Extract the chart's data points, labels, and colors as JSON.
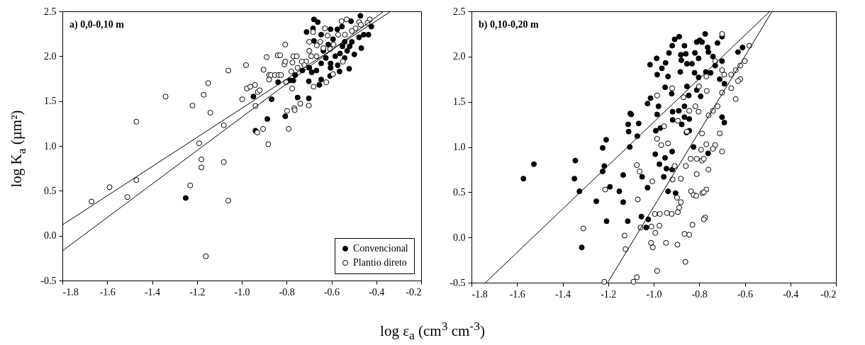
{
  "chart_data": [
    {
      "type": "scatter",
      "title": "a) 0,0-0,10 m",
      "xlabel": "log ε$_{a}$ (cm$^{3}$ cm$^{-3}$)",
      "ylabel": "log K$_{a}$ (µm²)",
      "xlim": [
        -1.8,
        -0.2
      ],
      "ylim": [
        -0.5,
        2.5
      ],
      "xticks": [
        -1.8,
        -1.6,
        -1.4,
        -1.2,
        {
          "value": -1.0,
          "label": "-1.0"
        },
        -0.8,
        -0.6,
        -0.4,
        -0.2
      ],
      "yticks": [
        -0.5,
        {
          "value": 0,
          "label": "0.0"
        },
        0.5,
        {
          "value": 1,
          "label": "1.0"
        },
        1.5,
        {
          "value": 2,
          "label": "2.0"
        },
        2.5
      ],
      "legend": "bottom right",
      "marker": "circle",
      "series": [
        {
          "name": "Convencional",
          "color": "#000000",
          "x": [
            -1.25,
            -0.948,
            -0.867,
            -0.886,
            -0.806,
            -0.939,
            -0.838,
            -0.785,
            -0.77,
            -0.762,
            -0.751,
            -0.701,
            -0.701,
            -0.711,
            -0.678,
            -0.661,
            -0.682,
            -0.646,
            -0.654,
            -0.606,
            -0.564,
            -0.521,
            -0.678,
            -0.646,
            -0.604,
            -0.574,
            -0.553,
            -0.513,
            -0.471,
            -0.422,
            -0.435,
            -0.467,
            -0.498,
            -0.53,
            -0.551,
            -0.583,
            -0.604,
            -0.625,
            -0.646,
            -0.667,
            -0.688,
            -0.699,
            -0.73,
            -0.636,
            -0.614,
            -0.593,
            -0.541,
            -0.509,
            -0.477,
            -0.456,
            -0.541,
            -0.572,
            -0.604,
            -0.562,
            -0.519
          ],
          "values": [
            0.42,
            1.55,
            1.52,
            1.3,
            1.33,
            1.17,
            1.71,
            1.73,
            1.73,
            1.79,
            1.54,
            1.72,
            1.53,
            2.27,
            2.41,
            2.38,
            2.31,
            1.74,
            1.68,
            1.78,
            1.83,
            1.86,
            2.17,
            2.24,
            2.3,
            2.3,
            2.33,
            2.39,
            2.45,
            2.33,
            2.24,
            2.09,
            2.02,
            2.06,
            2.11,
            2.0,
            1.92,
            1.98,
            1.92,
            1.84,
            1.82,
            1.87,
            1.84,
            2.06,
            2.13,
            2.19,
            2.16,
            2.16,
            2.21,
            2.24,
            1.98,
            1.9,
            1.87,
            2.03,
            2.11
          ]
        },
        {
          "name": "Plantio direto",
          "color": "#ffffff",
          "x": [
            -1.67,
            -1.59,
            -1.51,
            -1.47,
            -1.47,
            -1.34,
            -1.23,
            -1.22,
            -1.19,
            -1.18,
            -1.18,
            -1.17,
            -1.15,
            -1.16,
            -1.14,
            -1.08,
            -1.08,
            -1.06,
            -1.06,
            -0.981,
            -0.998,
            -0.939,
            -0.889,
            -0.903,
            -0.977,
            -0.962,
            -0.941,
            -0.929,
            -0.92,
            -0.878,
            -0.87,
            -0.852,
            -0.836,
            -0.825,
            -0.878,
            -0.84,
            -0.829,
            -0.806,
            -0.81,
            -0.806,
            -0.802,
            -0.775,
            -0.905,
            -0.931,
            -0.882,
            -0.791,
            -0.798,
            -0.766,
            -0.764,
            -0.739,
            -0.701,
            -0.68,
            -0.623,
            -0.593,
            -0.699,
            -0.699,
            -0.682,
            -0.665,
            -0.65,
            -0.629,
            -0.617,
            -0.591,
            -0.555,
            -0.532,
            -0.477,
            -0.469,
            -0.429,
            -0.439,
            -0.492,
            -0.509,
            -0.54,
            -0.549,
            -0.57,
            -0.606,
            -0.636,
            -0.667,
            -0.69,
            -0.713,
            -0.732,
            -0.77,
            -0.755,
            -0.774,
            -0.721,
            -0.779,
            -0.751
          ],
          "values": [
            0.38,
            0.54,
            0.43,
            1.27,
            0.62,
            1.55,
            0.56,
            1.45,
            1.03,
            0.85,
            0.76,
            1.57,
            1.7,
            -0.23,
            1.37,
            1.23,
            0.82,
            1.84,
            0.39,
            1.9,
            1.52,
            1.445,
            1.99,
            1.85,
            1.64,
            1.66,
            1.68,
            1.6,
            1.62,
            1.79,
            1.79,
            1.79,
            1.79,
            1.79,
            1.74,
            2.01,
            2.01,
            2.13,
            1.91,
            1.94,
            1.71,
            1.64,
            1.19,
            1.15,
            1.02,
            1.19,
            1.39,
            1.42,
            1.4,
            1.47,
            1.45,
            1.66,
            1.71,
            1.8,
            2.16,
            2.06,
            2.27,
            2.12,
            2.16,
            2.31,
            2.23,
            2.13,
            2.39,
            2.41,
            2.38,
            2.35,
            2.41,
            2.37,
            2.31,
            2.28,
            2.24,
            1.94,
            2.24,
            2.08,
            2.09,
            2.0,
            2.0,
            1.94,
            1.94,
            2.0,
            2.0,
            1.93,
            1.9,
            1.83,
            1.87
          ]
        },
        {
          "type": "line",
          "marker": "none",
          "color": "#000000",
          "x": [
            -1.8,
            -0.335
          ],
          "values": [
            0.12,
            2.5
          ]
        },
        {
          "type": "line",
          "marker": "none",
          "color": "#000000",
          "x": [
            -1.8,
            -0.367
          ],
          "values": [
            -0.17,
            2.5
          ]
        }
      ]
    },
    {
      "type": "scatter",
      "title": "b) 0,10-0,20 m",
      "xlim": [
        -1.8,
        -0.2
      ],
      "ylim": [
        -0.5,
        2.5
      ],
      "xticks": [
        -1.8,
        -1.6,
        -1.4,
        -1.2,
        {
          "value": -1.0,
          "label": "-1.0"
        },
        -0.8,
        -0.6,
        -0.4,
        -0.2
      ],
      "yticks": [
        -0.5,
        {
          "value": 0,
          "label": "0.0"
        },
        0.5,
        {
          "value": 1,
          "label": "1.0"
        },
        1.5,
        {
          "value": 2,
          "label": "2.0"
        },
        2.5
      ],
      "marker": "circle",
      "series": [
        {
          "color": "#000000",
          "x": [
            -1.572,
            -1.526,
            -1.344,
            -1.348,
            -1.326,
            -1.316,
            -1.224,
            -1.209,
            -1.217,
            -1.224,
            -1.192,
            -1.252,
            -1.207,
            -1.151,
            -1.134,
            -1.134,
            -1.114,
            -1.11,
            -1.112,
            -1.103,
            -1.099,
            -1.066,
            -1.072,
            -1.105,
            -1.054,
            -1.051,
            -1.033,
            -1.027,
            -1.024,
            -1.027,
            -1.014,
            -1.016,
            -0.987,
            -0.985,
            -0.979,
            -0.985,
            -0.991,
            -0.971,
            -0.964,
            -0.948,
            -0.937,
            -0.933,
            -0.919,
            -0.908,
            -0.888,
            -0.921,
            -0.95,
            -0.993,
            -0.975,
            -0.95,
            -0.956,
            -0.944,
            -0.919,
            -0.919,
            -0.937,
            -0.904,
            -0.917,
            -0.917,
            -0.89,
            -0.877,
            -0.865,
            -0.844,
            -0.844,
            -0.856,
            -0.865,
            -0.854,
            -0.846,
            -0.865,
            -0.859,
            -0.881,
            -0.883,
            -0.879,
            -0.854,
            -0.832,
            -0.819,
            -0.811,
            -0.798,
            -0.788,
            -0.774,
            -0.763,
            -0.803,
            -0.821,
            -0.803,
            -0.811,
            -0.794,
            -0.771,
            -0.825,
            -0.761,
            -0.72,
            -0.7,
            -0.74,
            -0.7,
            -0.75,
            -0.71,
            -0.69,
            -0.69,
            -0.7,
            -0.61,
            -0.63,
            -0.73,
            -0.76
          ],
          "values": [
            0.65,
            0.81,
            0.85,
            0.65,
            0.51,
            -0.11,
            0.99,
            1.08,
            0.79,
            0.73,
            0.56,
            0.4,
            0.18,
            0.51,
            0.39,
            0.69,
            0.18,
            1.17,
            1.25,
            1.37,
            1.36,
            1.26,
            1.12,
            1.0,
            0.23,
            0.67,
            0.11,
            0.55,
            0.2,
            1.48,
            1.54,
            1.91,
            1.98,
            1.8,
            1.45,
            1.36,
            1.18,
            1.21,
            1.87,
            1.93,
            1.78,
            2.04,
            2.12,
            2.19,
            2.22,
            1.59,
            1.66,
            0.92,
            0.81,
            0.88,
            0.67,
            0.76,
            0.95,
            0.75,
            0.51,
            0.49,
            1.39,
            1.3,
            1.4,
            1.25,
            1.33,
            1.31,
            1.18,
            1.16,
            1.45,
            1.67,
            1.57,
            2.12,
            2.03,
            2.02,
            1.83,
            1.96,
            1.92,
            1.92,
            2.04,
            2.16,
            2.18,
            2.16,
            2.25,
            2.1,
            1.98,
            1.82,
            1.77,
            1.63,
            1.56,
            1.83,
            1.0,
            0.93,
            2.15,
            2.22,
            2.0,
            1.95,
            1.82,
            1.75,
            1.7,
            1.27,
            1.33,
            2.1,
            2.05,
            1.9,
            2.05
          ]
        },
        {
          "color": "#ffffff",
          "x": [
            -1.309,
            -1.213,
            -1.128,
            -1.124,
            -1.217,
            -1.089,
            -1.074,
            -1.07,
            -1.074,
            -1.062,
            -1.006,
            -1.058,
            -1.01,
            -0.975,
            -0.993,
            -1.012,
            -1.004,
            -0.985,
            -0.946,
            -0.995,
            -0.973,
            -0.942,
            -0.921,
            -0.894,
            -0.888,
            -0.881,
            -0.898,
            -0.917,
            -0.881,
            -0.908,
            -0.865,
            -0.844,
            -0.896,
            -0.861,
            -0.83,
            -0.836,
            -0.825,
            -0.813,
            -0.811,
            -0.769,
            -0.786,
            -0.774,
            -0.838,
            -0.811,
            -0.788,
            -0.78,
            -0.792,
            -0.769,
            -0.788,
            -0.859,
            -0.954,
            -0.967,
            -0.937,
            -0.985,
            -0.919,
            -0.985,
            -0.869,
            -0.817,
            -0.803,
            -0.844,
            -0.854,
            -0.894,
            -0.759,
            -0.801,
            -0.767,
            -0.769,
            -0.73,
            -0.7,
            -0.69,
            -0.66,
            -0.64,
            -0.62,
            -0.6,
            -0.58,
            -0.62,
            -0.64,
            -0.7,
            -0.72,
            -0.74,
            -0.71,
            -0.7,
            -0.73,
            -0.74,
            -0.76,
            -0.78,
            -0.78,
            -0.7,
            -0.63,
            -0.66
          ],
          "values": [
            0.1,
            0.53,
            0.02,
            -0.13,
            -0.49,
            -0.49,
            -0.44,
            0.42,
            0.8,
            0.73,
            0.62,
            0.11,
            0.12,
            0.13,
            0.05,
            -0.06,
            -0.11,
            -0.37,
            -0.06,
            0.26,
            0.26,
            0.27,
            0.26,
            0.28,
            0.33,
            0.39,
            0.44,
            0.64,
            0.65,
            0.79,
            0.04,
            0.03,
            -0.08,
            -0.27,
            0.14,
            0.51,
            0.47,
            0.46,
            0.7,
            0.53,
            0.49,
            0.22,
            0.87,
            0.87,
            0.85,
            0.87,
            0.97,
            1.03,
            1.15,
            0.79,
            1.23,
            1.02,
            1.04,
            1.09,
            1.65,
            1.57,
            1.55,
            1.45,
            1.39,
            1.4,
            1.17,
            1.29,
            1.35,
            1.67,
            1.62,
            1.78,
            1.95,
            1.85,
            1.8,
            1.8,
            1.85,
            1.9,
            1.95,
            2.12,
            1.75,
            1.53,
            1.6,
            1.45,
            1.4,
            1.15,
            0.95,
            1.02,
            0.98,
            0.75,
            0.5,
            0.2,
            2.25,
            1.73,
            1.65
          ]
        },
        {
          "type": "line",
          "marker": "none",
          "color": "#000000",
          "x": [
            -1.739,
            -0.49
          ],
          "values": [
            -0.5,
            2.5
          ]
        },
        {
          "type": "line",
          "marker": "none",
          "color": "#000000",
          "x": [
            -1.202,
            -0.48
          ],
          "values": [
            -0.5,
            2.5
          ]
        }
      ]
    }
  ]
}
